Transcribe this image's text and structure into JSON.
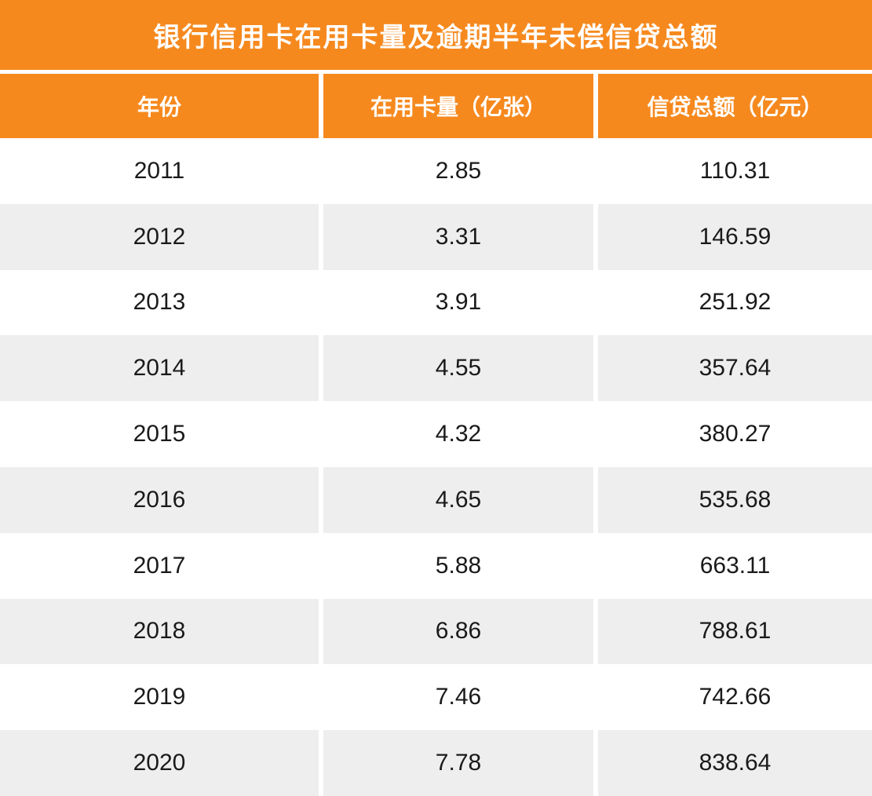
{
  "title": "银行信用卡在用卡量及逾期半年未偿信贷总额",
  "table": {
    "columns": [
      "年份",
      "在用卡量（亿张）",
      "信贷总额（亿元）"
    ],
    "rows": [
      [
        "2011",
        "2.85",
        "110.31"
      ],
      [
        "2012",
        "3.31",
        "146.59"
      ],
      [
        "2013",
        "3.91",
        "251.92"
      ],
      [
        "2014",
        "4.55",
        "357.64"
      ],
      [
        "2015",
        "4.32",
        "380.27"
      ],
      [
        "2016",
        "4.65",
        "535.68"
      ],
      [
        "2017",
        "5.88",
        "663.11"
      ],
      [
        "2018",
        "6.86",
        "788.61"
      ],
      [
        "2019",
        "7.46",
        "742.66"
      ],
      [
        "2020",
        "7.78",
        "838.64"
      ]
    ]
  },
  "colors": {
    "accent_orange": "#F6891E",
    "row_alt_gray": "#EEEEEE",
    "text_dark": "#1A1A1A"
  },
  "chart_data": {
    "type": "table",
    "title": "银行信用卡在用卡量及逾期半年未偿信贷总额",
    "columns": [
      "年份",
      "在用卡量（亿张）",
      "信贷总额（亿元）"
    ],
    "categories": [
      "2011",
      "2012",
      "2013",
      "2014",
      "2015",
      "2016",
      "2017",
      "2018",
      "2019",
      "2020"
    ],
    "series": [
      {
        "name": "在用卡量（亿张）",
        "values": [
          2.85,
          3.31,
          3.91,
          4.55,
          4.32,
          4.65,
          5.88,
          6.86,
          7.46,
          7.78
        ]
      },
      {
        "name": "信贷总额（亿元）",
        "values": [
          110.31,
          146.59,
          251.92,
          357.64,
          380.27,
          535.68,
          663.11,
          788.61,
          742.66,
          838.64
        ]
      }
    ],
    "layout_hints": {
      "header_background": "#F6891E",
      "alternating_rows": true,
      "text_alignment": "center"
    }
  }
}
